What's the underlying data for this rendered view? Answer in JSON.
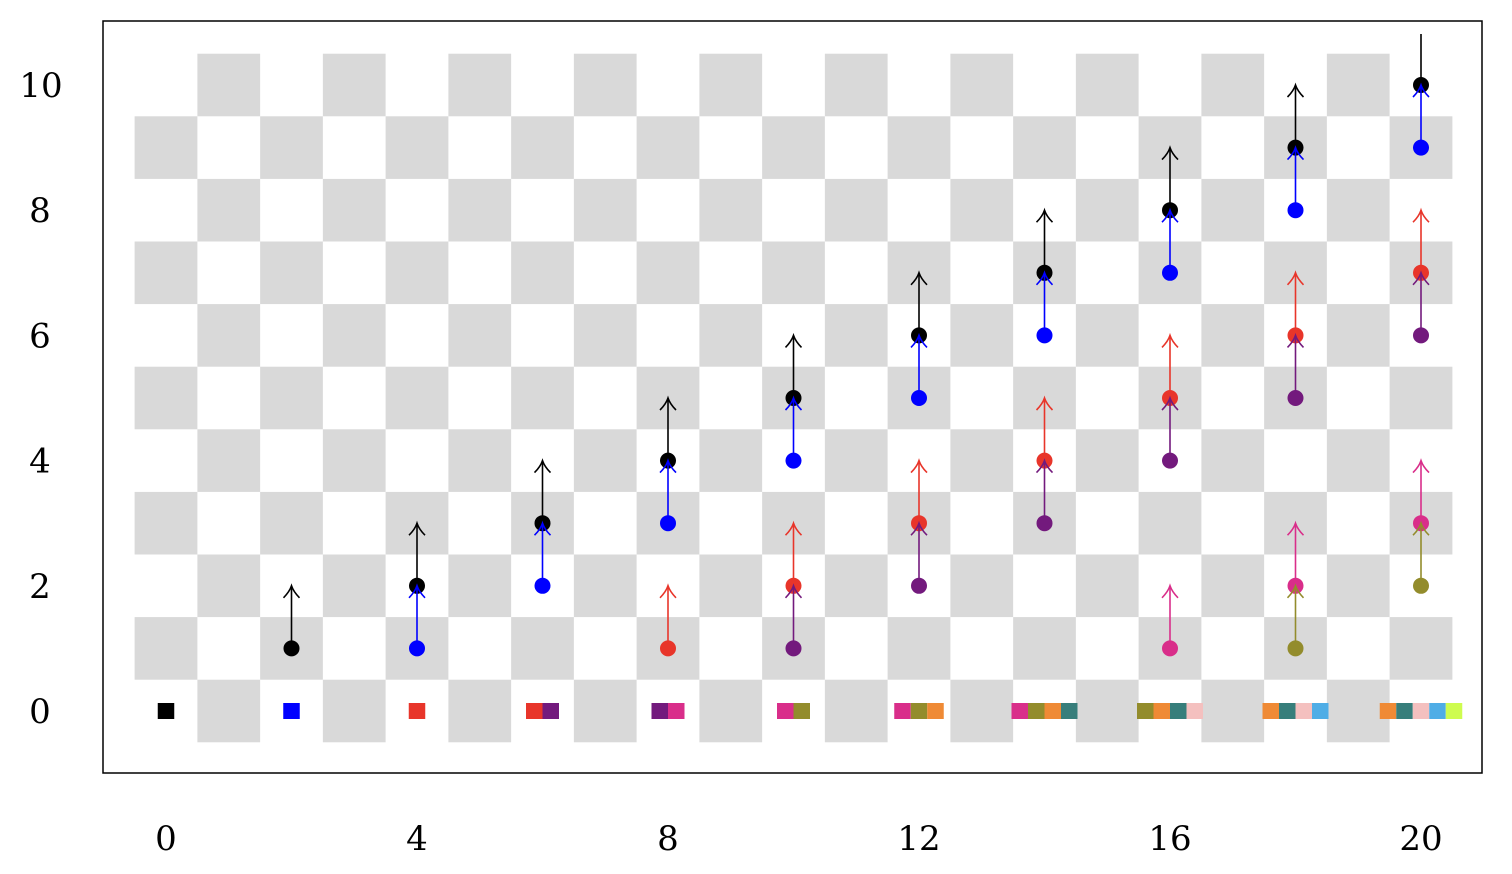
{
  "chart_data": {
    "type": "scatter",
    "title": "",
    "xlabel": "",
    "ylabel": "",
    "xlim": [
      -1,
      21
    ],
    "ylim": [
      -1,
      11
    ],
    "grid": false,
    "background": "checkerboard",
    "x_ticks": [
      0,
      4,
      8,
      12,
      16,
      20
    ],
    "y_ticks": [
      0,
      2,
      4,
      6,
      8,
      10
    ],
    "colors": {
      "black": "#000000",
      "blue": "#0000ff",
      "red": "#e8352a",
      "purple": "#731a7d",
      "pink": "#d92e8a",
      "olive": "#938c2c",
      "orange": "#ef8a35",
      "teal": "#377e7b",
      "lightpink": "#f4c0bf",
      "lightblue": "#4fade6",
      "lime": "#cefc4f"
    },
    "columns": [
      {
        "x": 0,
        "points": [],
        "squares": [
          "black"
        ]
      },
      {
        "x": 2,
        "points": [
          {
            "c": "black",
            "y": 1
          }
        ],
        "squares": [
          "blue"
        ]
      },
      {
        "x": 4,
        "points": [
          {
            "c": "black",
            "y": 2
          },
          {
            "c": "blue",
            "y": 1
          }
        ],
        "squares": [
          "red"
        ]
      },
      {
        "x": 6,
        "points": [
          {
            "c": "black",
            "y": 3
          },
          {
            "c": "blue",
            "y": 2
          }
        ],
        "squares": [
          "red",
          "purple"
        ]
      },
      {
        "x": 8,
        "points": [
          {
            "c": "black",
            "y": 4
          },
          {
            "c": "blue",
            "y": 3
          },
          {
            "c": "red",
            "y": 1
          }
        ],
        "squares": [
          "purple",
          "pink"
        ]
      },
      {
        "x": 10,
        "points": [
          {
            "c": "black",
            "y": 5
          },
          {
            "c": "blue",
            "y": 4
          },
          {
            "c": "red",
            "y": 2
          },
          {
            "c": "purple",
            "y": 1
          }
        ],
        "squares": [
          "pink",
          "olive"
        ]
      },
      {
        "x": 12,
        "points": [
          {
            "c": "black",
            "y": 6
          },
          {
            "c": "blue",
            "y": 5
          },
          {
            "c": "red",
            "y": 3
          },
          {
            "c": "purple",
            "y": 2
          }
        ],
        "squares": [
          "pink",
          "olive",
          "orange"
        ]
      },
      {
        "x": 14,
        "points": [
          {
            "c": "black",
            "y": 7
          },
          {
            "c": "blue",
            "y": 6
          },
          {
            "c": "red",
            "y": 4
          },
          {
            "c": "purple",
            "y": 3
          }
        ],
        "squares": [
          "pink",
          "olive",
          "orange",
          "teal"
        ]
      },
      {
        "x": 16,
        "points": [
          {
            "c": "black",
            "y": 8
          },
          {
            "c": "blue",
            "y": 7
          },
          {
            "c": "red",
            "y": 5
          },
          {
            "c": "purple",
            "y": 4
          },
          {
            "c": "pink",
            "y": 1
          }
        ],
        "squares": [
          "olive",
          "orange",
          "teal",
          "lightpink"
        ]
      },
      {
        "x": 18,
        "points": [
          {
            "c": "black",
            "y": 9
          },
          {
            "c": "blue",
            "y": 8
          },
          {
            "c": "red",
            "y": 6
          },
          {
            "c": "purple",
            "y": 5
          },
          {
            "c": "pink",
            "y": 2
          },
          {
            "c": "olive",
            "y": 1
          }
        ],
        "squares": [
          "orange",
          "teal",
          "lightpink",
          "lightblue"
        ]
      },
      {
        "x": 20,
        "points": [
          {
            "c": "black",
            "y": 10
          },
          {
            "c": "blue",
            "y": 9
          },
          {
            "c": "red",
            "y": 7
          },
          {
            "c": "purple",
            "y": 6
          },
          {
            "c": "pink",
            "y": 3
          },
          {
            "c": "olive",
            "y": 2
          }
        ],
        "squares": [
          "orange",
          "teal",
          "lightpink",
          "lightblue",
          "lime"
        ]
      }
    ],
    "arrow_length": 1
  }
}
